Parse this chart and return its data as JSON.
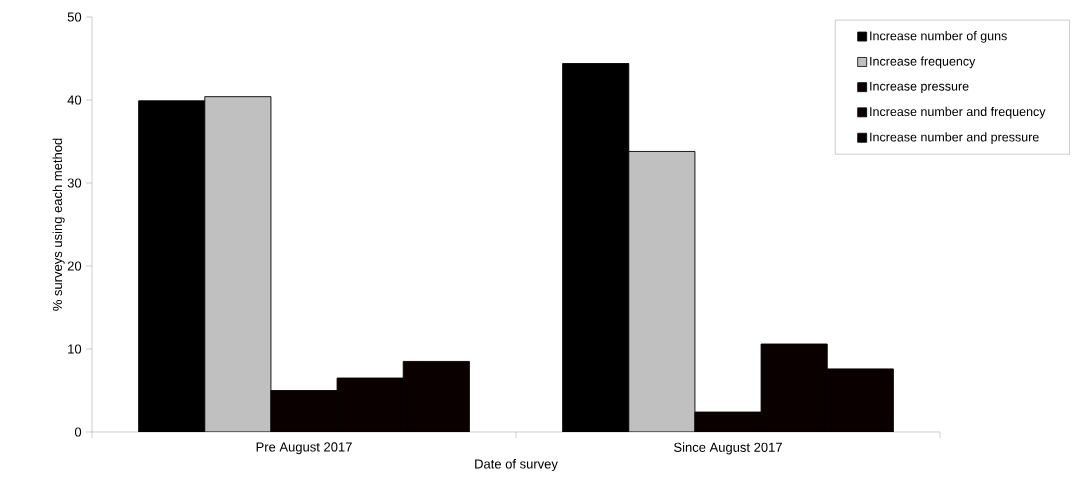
{
  "chart_data": {
    "type": "bar",
    "xlabel": "Date of survey",
    "ylabel": "% surveys using each method",
    "categories": [
      "Pre August 2017",
      "Since August 2017"
    ],
    "series": [
      {
        "name": "Increase number of guns",
        "color": "#000000",
        "values": [
          39.9,
          44.4
        ]
      },
      {
        "name": "Increase frequency",
        "color": "#c0c0c0",
        "values": [
          40.4,
          33.8
        ]
      },
      {
        "name": "Increase pressure",
        "color": "#0a0000",
        "values": [
          5.0,
          2.4
        ]
      },
      {
        "name": "Increase number and frequency",
        "color": "#0a0000",
        "values": [
          6.5,
          10.6
        ]
      },
      {
        "name": "Increase number and pressure",
        "color": "#0a0000",
        "values": [
          8.5,
          7.6
        ]
      }
    ],
    "ylim": [
      0,
      50
    ],
    "yticks": [
      0,
      10,
      20,
      30,
      40,
      50
    ],
    "grid": false,
    "legend": "top right"
  }
}
